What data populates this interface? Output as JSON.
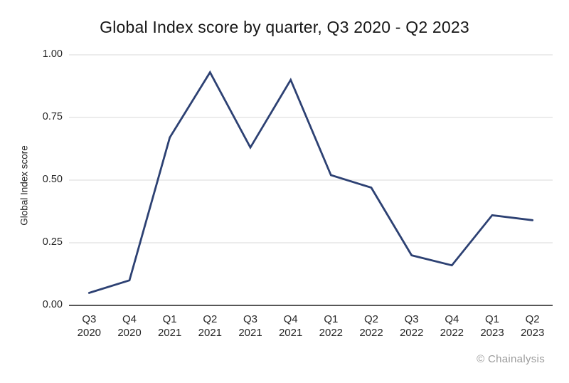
{
  "chart_data": {
    "type": "line",
    "title": "Global Index score by quarter, Q3 2020 - Q2 2023",
    "ylabel": "Global Index score",
    "source": "© Chainalysis",
    "categories": [
      "Q3 2020",
      "Q4 2020",
      "Q1 2021",
      "Q2 2021",
      "Q3 2021",
      "Q4 2021",
      "Q1 2022",
      "Q2 2022",
      "Q3 2022",
      "Q4 2022",
      "Q1 2023",
      "Q2 2023"
    ],
    "series": [
      {
        "name": "Global Index score",
        "values": [
          0.05,
          0.1,
          0.67,
          0.93,
          0.63,
          0.9,
          0.52,
          0.47,
          0.2,
          0.16,
          0.36,
          0.34
        ]
      }
    ],
    "ylim": [
      0,
      1
    ],
    "yticks": [
      0,
      0.25,
      0.5,
      0.75,
      1
    ],
    "ytick_labels": [
      "0.00",
      "0.25",
      "0.50",
      "0.75",
      "1.00"
    ],
    "grid": "horizontal",
    "legend": "none",
    "colors": {
      "line": "#2d4173",
      "gridline": "#d9d9d9",
      "axis_line": "#575757",
      "text": "#262626",
      "title_text": "#161616",
      "source_text": "#9b9b9b",
      "background": "#ffffff"
    }
  }
}
